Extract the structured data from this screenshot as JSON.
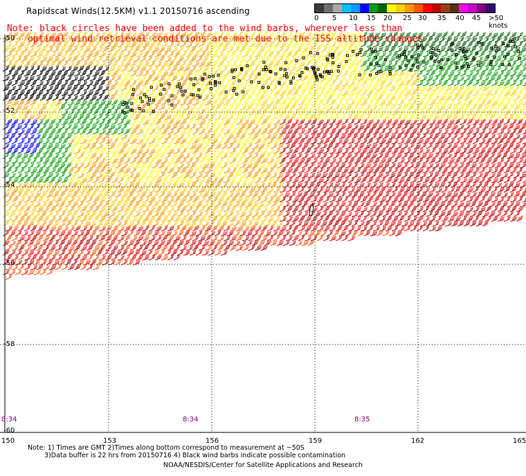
{
  "title": "Rapidscat Winds(12.5KM) v1.1 20150716 ascending",
  "note": {
    "line1": "Note: black circles have been added to the wind barbs, wherever less than",
    "line2": "optimal wind retrieval conditions are met due to the ISS altitude changes"
  },
  "legend": {
    "labels": [
      "0",
      "5",
      "10",
      "15",
      "20",
      "25",
      "30",
      "35",
      "40",
      "45",
      ">50 knots"
    ],
    "colors": [
      "#3a3a3a",
      "#6e6e6e",
      "#a8a8a8",
      "#00bfff",
      "#0099ff",
      "#0000ff",
      "#00a000",
      "#006400",
      "#ffff00",
      "#ffd000",
      "#ff9900",
      "#ff5500",
      "#ff0000",
      "#c00000",
      "#8b4513",
      "#5c2e0e",
      "#ff00ff",
      "#cc00cc",
      "#800080",
      "#2e0a6b"
    ]
  },
  "axes": {
    "lat_labels": [
      "-50",
      "-52",
      "-54",
      "-56",
      "-58",
      "-60"
    ],
    "lon_labels": [
      "150",
      "153",
      "156",
      "159",
      "162",
      "165"
    ]
  },
  "time_labels": [
    "8:34",
    "8:34",
    "8:35"
  ],
  "footnotes": {
    "line1": "Note: 1) Times are GMT 2)Times along bottom correspond to measurement at ~50S",
    "line2": "3)Data buffer is 22 hrs from 20150716 4) Black wind barbs indicate possible contamination"
  },
  "credit": "NOAA/NESDIS/Center for Satellite Applications and Research",
  "wind_colors": {
    "calm_dark_green": "#006400",
    "green": "#00a000",
    "blue": "#0000ff",
    "yellow": "#ffff00",
    "gold": "#ffd000",
    "orange": "#ff9900",
    "dark_orange": "#ff5500",
    "red": "#ff0000",
    "crimson": "#c00000",
    "contaminated": "#000000"
  }
}
